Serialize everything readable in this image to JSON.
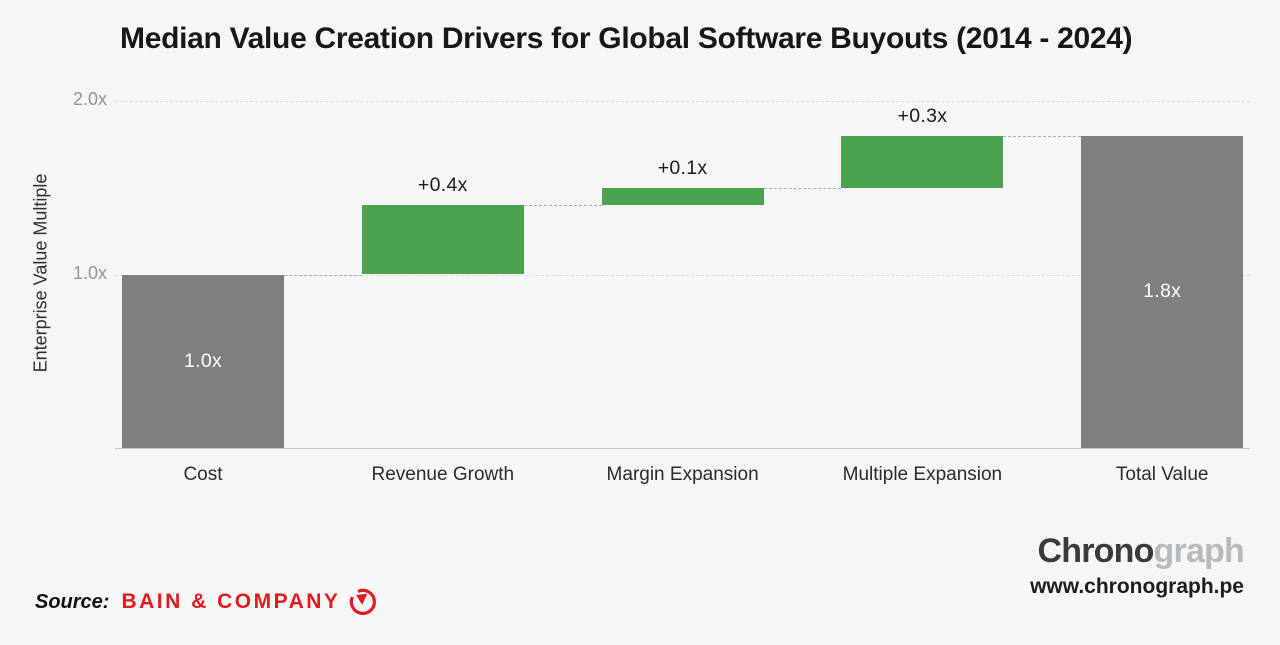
{
  "title": "Median Value Creation Drivers for Global Software Buyouts (2014 - 2024)",
  "chart_data": {
    "type": "bar",
    "subtype": "waterfall",
    "title": "Median Value Creation Drivers for Global Software Buyouts (2014 - 2024)",
    "xlabel": "",
    "ylabel": "Enterprise Value Multiple",
    "ylim": [
      0,
      2.0
    ],
    "yticks": [
      {
        "value": 1.0,
        "label": "1.0x"
      },
      {
        "value": 2.0,
        "label": "2.0x"
      }
    ],
    "grid": "horizontal-dashed",
    "legend": "none",
    "categories": [
      "Cost",
      "Revenue Growth",
      "Margin Expansion",
      "Multiple Expansion",
      "Total Value"
    ],
    "bars": [
      {
        "category": "Cost",
        "value_label": "1.0x",
        "start": 0.0,
        "end": 1.0,
        "color_key": "gray",
        "value_label_position": "inside"
      },
      {
        "category": "Revenue Growth",
        "value_label": "+0.4x",
        "start": 1.0,
        "end": 1.4,
        "color_key": "green",
        "value_label_position": "above"
      },
      {
        "category": "Margin Expansion",
        "value_label": "+0.1x",
        "start": 1.4,
        "end": 1.5,
        "color_key": "green",
        "value_label_position": "above"
      },
      {
        "category": "Multiple Expansion",
        "value_label": "+0.3x",
        "start": 1.5,
        "end": 1.8,
        "color_key": "green",
        "value_label_position": "above"
      },
      {
        "category": "Total Value",
        "value_label": "1.8x",
        "start": 0.0,
        "end": 1.8,
        "color_key": "gray",
        "value_label_position": "inside"
      }
    ]
  },
  "footer": {
    "source_label": "Source:",
    "source_name": "BAIN & COMPANY",
    "brand_dark": "Chrono",
    "brand_light": "graph",
    "website": "www.chronograph.pe"
  },
  "icons": {
    "bain_logo": "bain-clock-arrow-icon"
  },
  "colors": {
    "green": "#4ba24d",
    "gray": "#7f7f7f",
    "background": "#f6f6f6",
    "bain_red": "#e01a21",
    "brand_dark": "#3b3b3b",
    "brand_light": "#b6babc"
  }
}
